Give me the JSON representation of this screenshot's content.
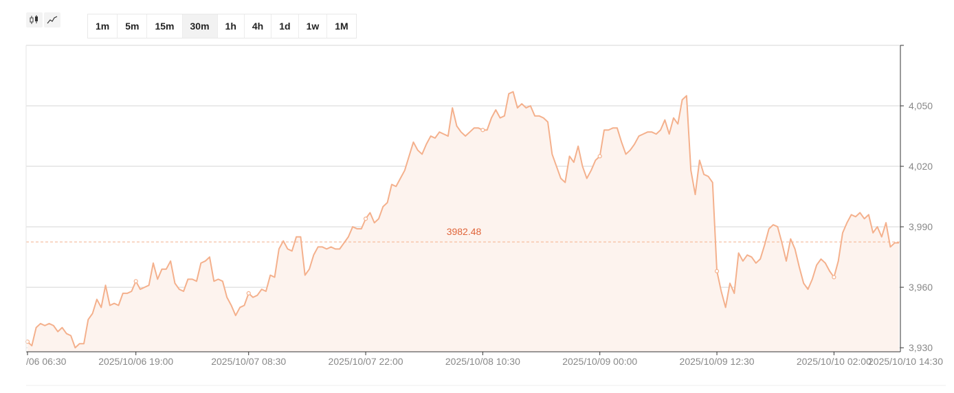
{
  "chart_type_buttons": [
    {
      "name": "candlestick-icon"
    },
    {
      "name": "line-chart-icon"
    }
  ],
  "intervals": [
    "1m",
    "5m",
    "15m",
    "30m",
    "1h",
    "4h",
    "1d",
    "1w",
    "1M"
  ],
  "active_interval": "30m",
  "colors": {
    "line": "#f4b08c",
    "area": "#fdf3ee",
    "current_price": "#e0653a",
    "grid": "#d5d5d5"
  },
  "current_price_label": "3982.48",
  "chart_data": {
    "type": "area",
    "title": "",
    "xlabel": "",
    "ylabel": "",
    "current_price": 3982.48,
    "ylim": [
      3928,
      4080
    ],
    "y_ticks": [
      {
        "value": 3930,
        "label": "3,930"
      },
      {
        "value": 3960,
        "label": "3,960"
      },
      {
        "value": 3990,
        "label": "3,990"
      },
      {
        "value": 4020,
        "label": "4,020"
      },
      {
        "value": 4050,
        "label": "4,050"
      }
    ],
    "x_ticks": [
      {
        "index": 0,
        "label": "/06 06:30"
      },
      {
        "index": 25,
        "label": "2025/10/06 19:00"
      },
      {
        "index": 51,
        "label": "2025/10/07 08:30"
      },
      {
        "index": 78,
        "label": "2025/10/07 22:00"
      },
      {
        "index": 105,
        "label": "2025/10/08 10:30"
      },
      {
        "index": 132,
        "label": "2025/10/09 00:00"
      },
      {
        "index": 159,
        "label": "2025/10/09 12:30"
      },
      {
        "index": 186,
        "label": "2025/10/10 02:00"
      },
      {
        "index": 215,
        "label": "2025/10/10 14:30"
      }
    ],
    "values": [
      3933,
      3931,
      3940,
      3942,
      3941,
      3942,
      3941,
      3938,
      3940,
      3937,
      3936,
      3930,
      3932,
      3932,
      3944,
      3947,
      3954,
      3950,
      3961,
      3951,
      3952,
      3951,
      3957,
      3957,
      3958,
      3963,
      3959,
      3960,
      3961,
      3972,
      3964,
      3969,
      3969,
      3973,
      3962,
      3959,
      3958,
      3964,
      3964,
      3963,
      3972,
      3973,
      3975,
      3963,
      3964,
      3963,
      3955,
      3951,
      3946,
      3950,
      3951,
      3957,
      3955,
      3956,
      3959,
      3958,
      3966,
      3965,
      3979,
      3983,
      3979,
      3978,
      3985,
      3985,
      3966,
      3969,
      3976,
      3980,
      3980,
      3979,
      3980,
      3979,
      3979,
      3982,
      3985,
      3990,
      3989,
      3989,
      3994,
      3997,
      3992,
      3994,
      4000,
      4002,
      4011,
      4010,
      4014,
      4018,
      4025,
      4032,
      4028,
      4026,
      4031,
      4035,
      4034,
      4037,
      4036,
      4035,
      4049,
      4040,
      4037,
      4035,
      4037,
      4039,
      4039,
      4038,
      4038,
      4044,
      4048,
      4044,
      4045,
      4056,
      4057,
      4049,
      4051,
      4049,
      4050,
      4045,
      4045,
      4044,
      4042,
      4026,
      4020,
      4014,
      4012,
      4025,
      4022,
      4030,
      4020,
      4014,
      4018,
      4023,
      4025,
      4038,
      4038,
      4039,
      4039,
      4032,
      4026,
      4028,
      4031,
      4035,
      4036,
      4037,
      4037,
      4036,
      4038,
      4043,
      4036,
      4044,
      4041,
      4053,
      4055,
      4018,
      4006,
      4023,
      4016,
      4015,
      4012,
      3968,
      3958,
      3950,
      3962,
      3957,
      3977,
      3973,
      3976,
      3975,
      3972,
      3974,
      3981,
      3989,
      3991,
      3990,
      3982,
      3973,
      3984,
      3979,
      3970,
      3962,
      3959,
      3964,
      3971,
      3974,
      3972,
      3968,
      3965,
      3973,
      3987,
      3992,
      3996,
      3995,
      3997,
      3994,
      3996,
      3987,
      3990,
      3985,
      3992,
      3980,
      3982,
      3982
    ],
    "markers": [
      0,
      25,
      51,
      78,
      105,
      132,
      159,
      186,
      215
    ]
  }
}
